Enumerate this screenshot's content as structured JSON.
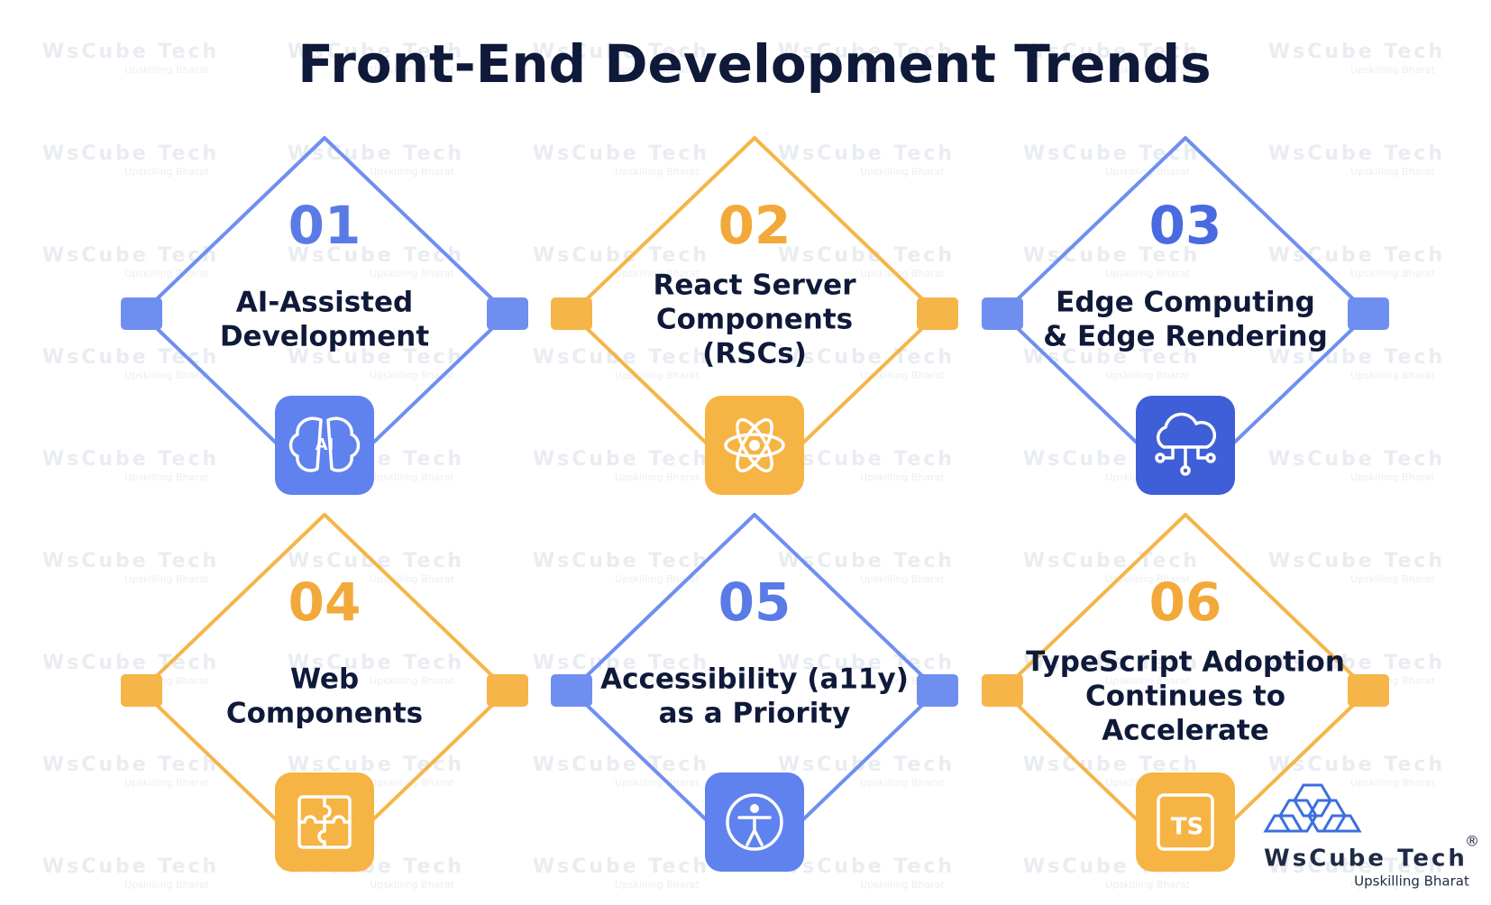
{
  "header": {
    "title": "Front-End Development Trends"
  },
  "watermark": {
    "brand": "WsCube Tech",
    "tagline": "Upskilling Bharat"
  },
  "items": [
    {
      "number": "01",
      "label": [
        "AI-Assisted",
        "Development"
      ],
      "icon_text": "AI"
    },
    {
      "number": "02",
      "label": [
        "React Server",
        "Components",
        "(RSCs)"
      ]
    },
    {
      "number": "03",
      "label": [
        "Edge Computing",
        "& Edge Rendering"
      ]
    },
    {
      "number": "04",
      "label": [
        "Web",
        "Components"
      ]
    },
    {
      "number": "05",
      "label": [
        "Accessibility (a11y)",
        "as a Priority"
      ]
    },
    {
      "number": "06",
      "label": [
        "TypeScript Adoption",
        "Continues to",
        "Accelerate"
      ],
      "icon_text": "TS"
    }
  ],
  "logo": {
    "brand": "WsCube Tech",
    "mark": "®",
    "tagline": "Upskilling Bharat"
  }
}
